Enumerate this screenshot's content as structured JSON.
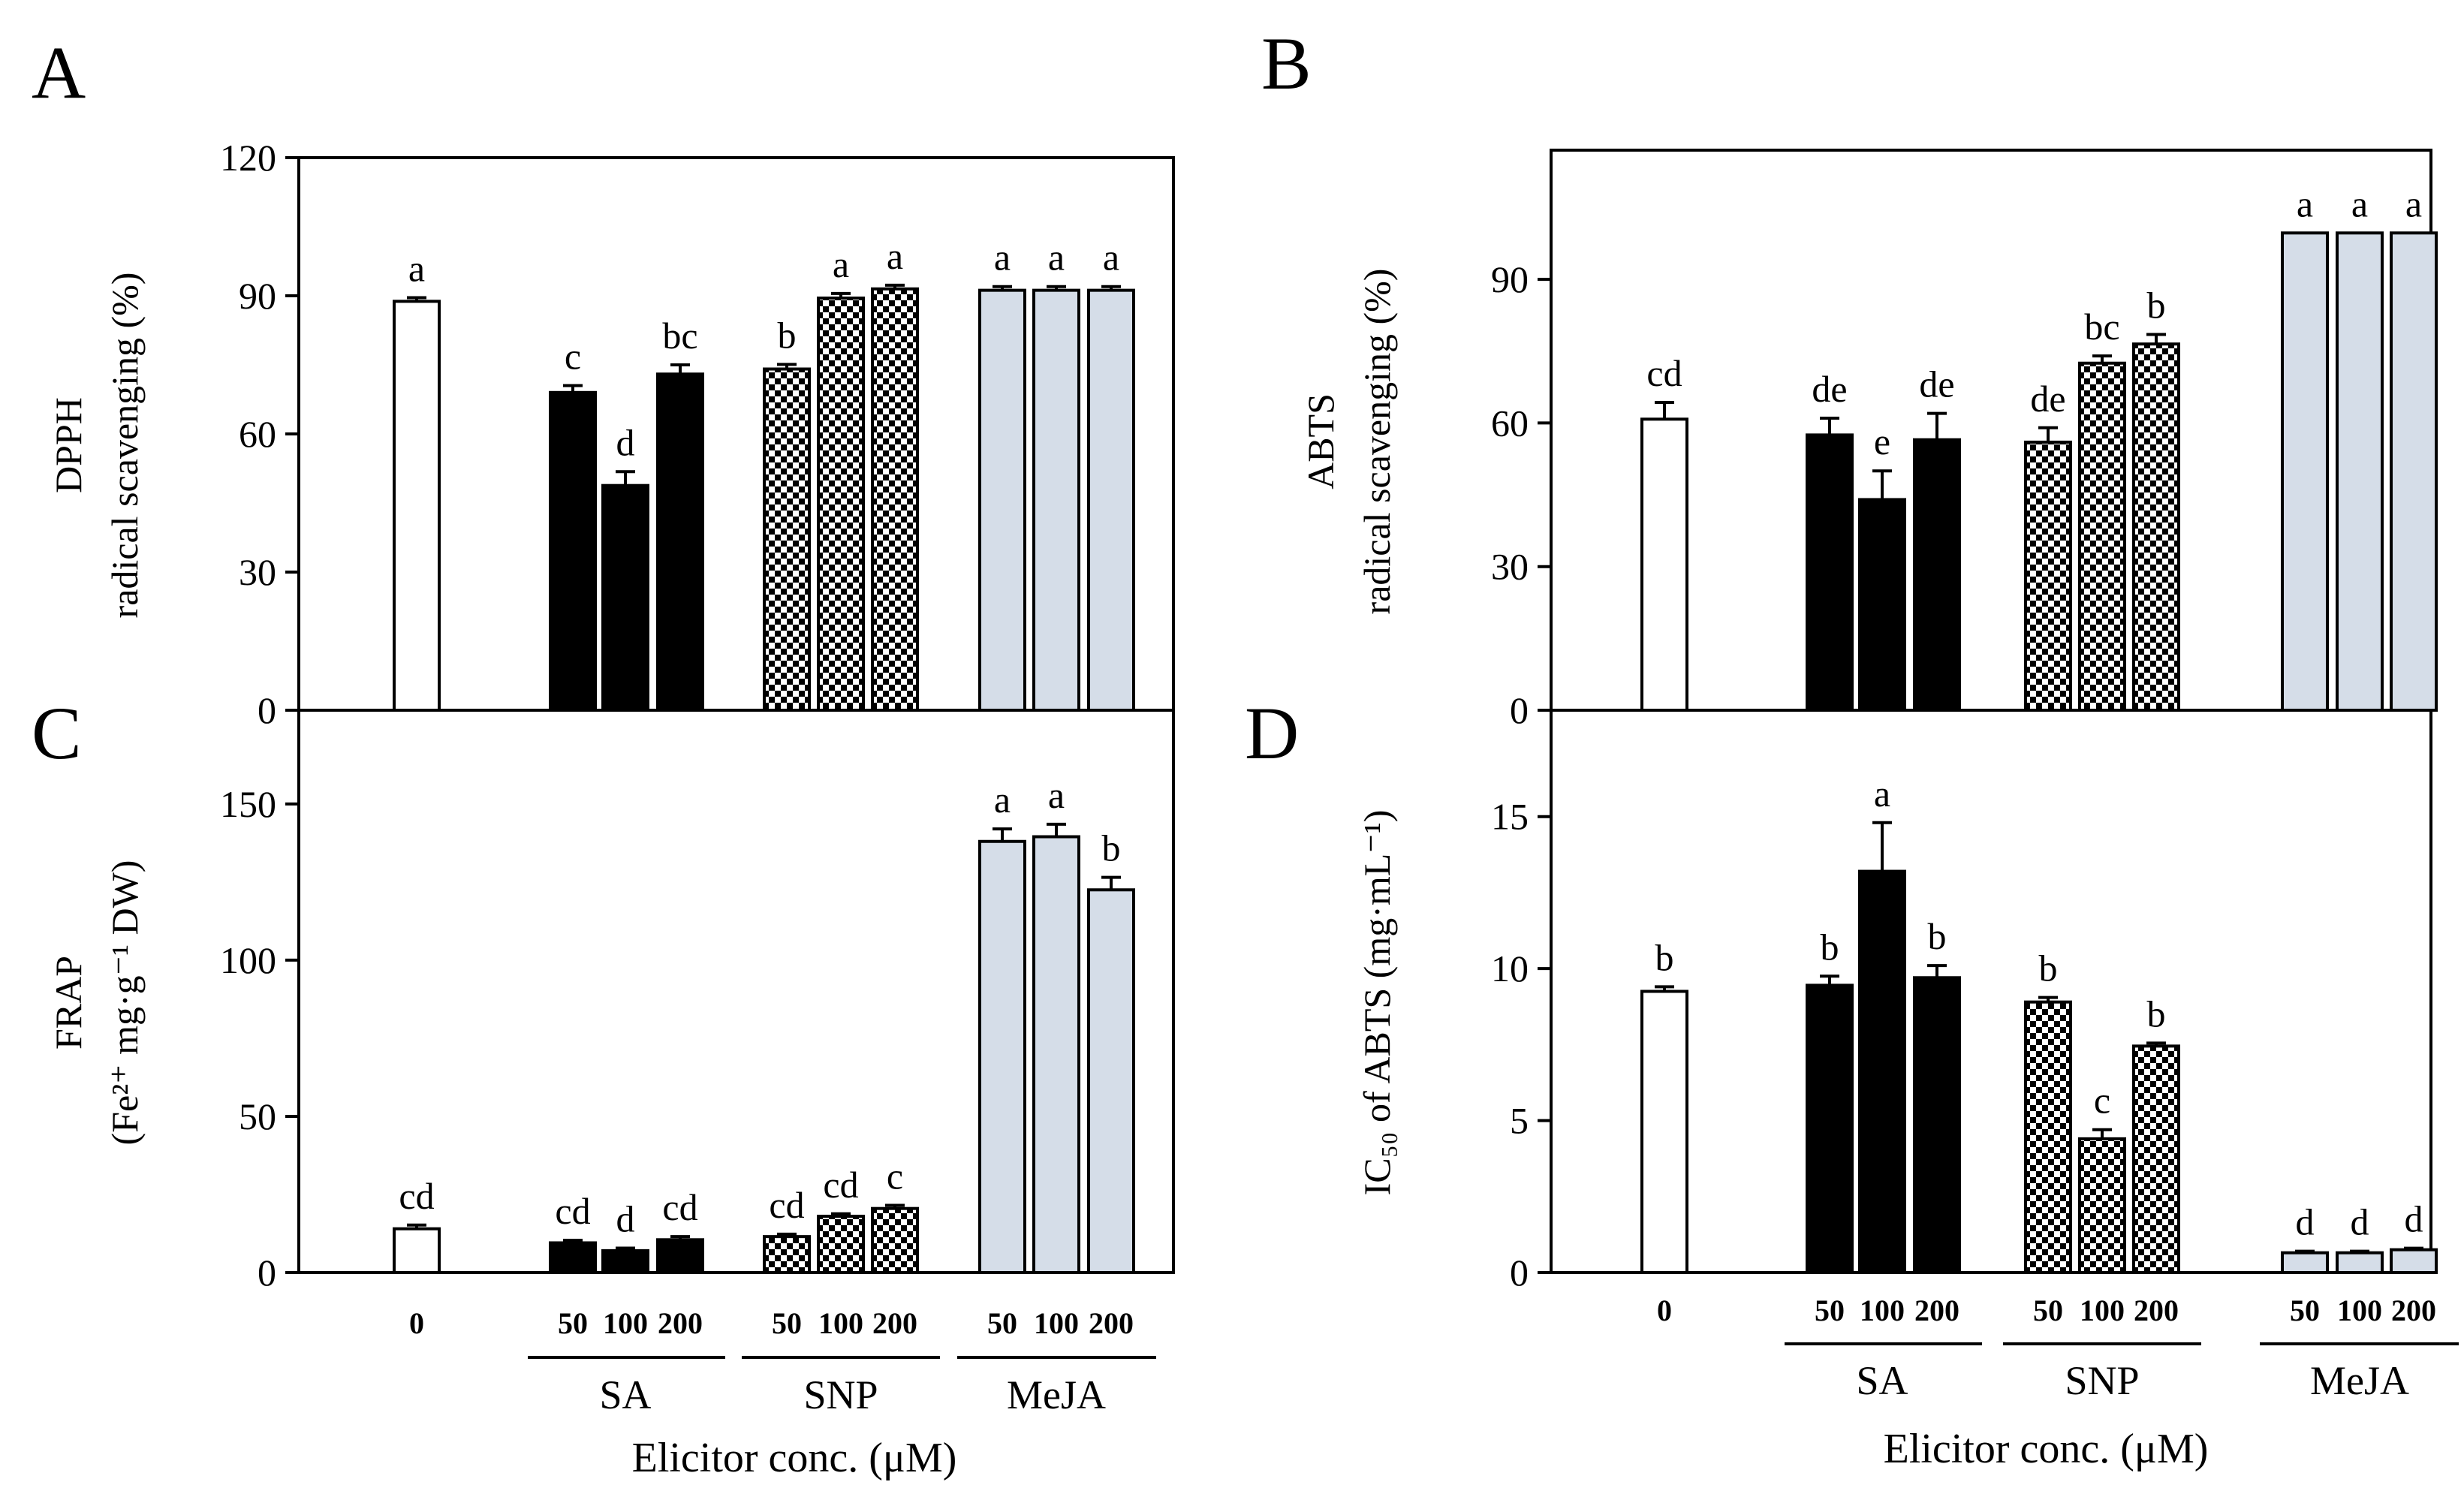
{
  "figure": {
    "colors": {
      "control": "#ffffff",
      "SA": "#000000",
      "SNP": "checker",
      "MeJA": "#d5dde8",
      "axis": "#000000"
    },
    "xlabel": "Elicitor conc. (μM)",
    "groups": [
      "SA",
      "SNP",
      "MeJA"
    ],
    "concentrations": [
      "50",
      "100",
      "200"
    ],
    "control_label": "0"
  },
  "chart_data": [
    {
      "panel": "A",
      "type": "bar",
      "ylabel_line1": "DPPH",
      "ylabel_line2": "radical scavenging (%)",
      "ylim": [
        0,
        120
      ],
      "yticks": [
        0,
        30,
        60,
        90,
        120
      ],
      "categories": [
        "0",
        "SA 50",
        "SA 100",
        "SA 200",
        "SNP 50",
        "SNP 100",
        "SNP 200",
        "MeJA 50",
        "MeJA 100",
        "MeJA 200"
      ],
      "values": [
        88.8,
        69.0,
        48.8,
        73.0,
        74.1,
        89.5,
        91.5,
        91.2,
        91.2,
        91.2
      ],
      "errors": [
        0.8,
        1.5,
        3.0,
        2.0,
        1.0,
        1.0,
        0.8,
        0.8,
        0.8,
        0.8
      ],
      "letters": [
        "a",
        "c",
        "d",
        "bc",
        "b",
        "a",
        "a",
        "a",
        "a",
        "a"
      ]
    },
    {
      "panel": "B",
      "type": "bar",
      "ylabel_line1": "ABTS",
      "ylabel_line2": "radical scavenging (%)",
      "ylim": [
        0,
        117
      ],
      "yticks": [
        0,
        30,
        60,
        90
      ],
      "categories": [
        "0",
        "SA 50",
        "SA 100",
        "SA 200",
        "SNP 50",
        "SNP 100",
        "SNP 200",
        "MeJA 50",
        "MeJA 100",
        "MeJA 200"
      ],
      "values": [
        60.8,
        57.5,
        44.0,
        56.5,
        56.0,
        72.5,
        76.5,
        99.7,
        99.7,
        99.7
      ],
      "errors": [
        3.5,
        3.5,
        6.0,
        5.5,
        3.0,
        1.5,
        2.0,
        0,
        0,
        0
      ],
      "letters": [
        "cd",
        "de",
        "e",
        "de",
        "de",
        "bc",
        "b",
        "a",
        "a",
        "a"
      ]
    },
    {
      "panel": "C",
      "type": "bar",
      "ylabel_line1": "FRAP",
      "ylabel_line2": "(Fe²⁺ mg·g⁻¹ DW)",
      "ylim": [
        0,
        180
      ],
      "yticks": [
        0,
        50,
        100,
        150
      ],
      "categories": [
        "0",
        "SA 50",
        "SA 100",
        "SA 200",
        "SNP 50",
        "SNP 100",
        "SNP 200",
        "MeJA 50",
        "MeJA 100",
        "MeJA 200"
      ],
      "values": [
        14.0,
        9.5,
        7.0,
        10.5,
        11.5,
        18.0,
        20.5,
        138.0,
        139.5,
        122.5
      ],
      "errors": [
        1.2,
        0.8,
        0.8,
        1.0,
        0.8,
        0.8,
        1.0,
        4.0,
        4.0,
        4.0
      ],
      "letters": [
        "cd",
        "cd",
        "d",
        "cd",
        "cd",
        "cd",
        "c",
        "a",
        "a",
        "b"
      ]
    },
    {
      "panel": "D",
      "type": "bar",
      "ylabel_line1": "IC₅₀ of ABTS (mg·mL⁻¹)",
      "ylabel_line2": "",
      "ylim": [
        0,
        18.5
      ],
      "yticks": [
        0,
        5,
        10,
        15
      ],
      "categories": [
        "0",
        "SA 50",
        "SA 100",
        "SA 200",
        "SNP 50",
        "SNP 100",
        "SNP 200",
        "MeJA 50",
        "MeJA 100",
        "MeJA 200"
      ],
      "values": [
        9.25,
        9.45,
        13.2,
        9.7,
        8.9,
        4.4,
        7.45,
        0.65,
        0.65,
        0.75
      ],
      "errors": [
        0.15,
        0.3,
        1.6,
        0.4,
        0.15,
        0.3,
        0.1,
        0.05,
        0.05,
        0.05
      ],
      "letters": [
        "b",
        "b",
        "a",
        "b",
        "b",
        "c",
        "b",
        "d",
        "d",
        "d"
      ]
    }
  ]
}
